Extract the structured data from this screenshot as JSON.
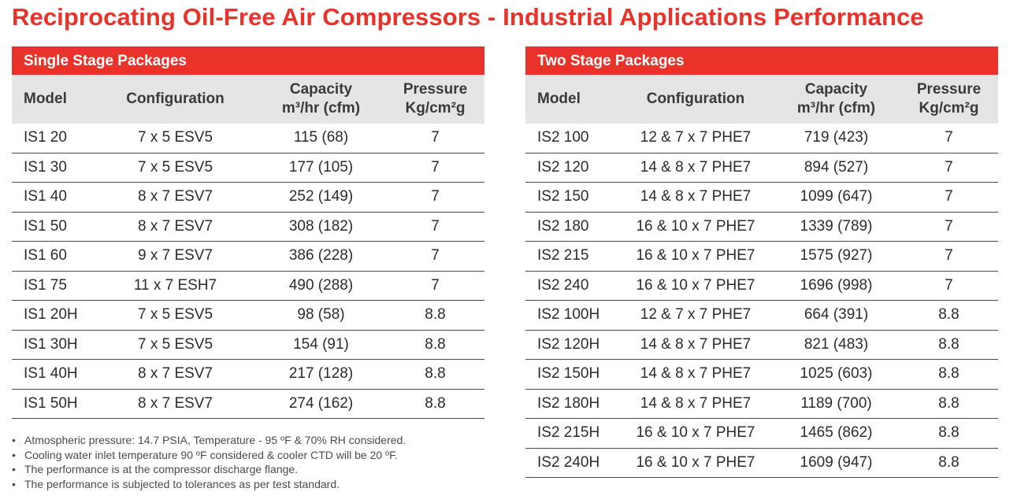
{
  "title": "Reciprocating Oil-Free Air Compressors - Industrial Applications Performance",
  "headers": {
    "model": "Model",
    "configuration": "Configuration",
    "capacity_line1": "Capacity",
    "capacity_line2": "m³/hr (cfm)",
    "pressure_line1": "Pressure",
    "pressure_line2": "Kg/cm²g"
  },
  "single_stage": {
    "title": "Single Stage Packages",
    "rows": [
      {
        "model": "IS1 20",
        "config": "7 x 5 ESV5",
        "capacity": "115 (68)",
        "pressure": "7"
      },
      {
        "model": "IS1 30",
        "config": "7 x 5 ESV5",
        "capacity": "177 (105)",
        "pressure": "7"
      },
      {
        "model": "IS1 40",
        "config": "8 x 7 ESV7",
        "capacity": "252 (149)",
        "pressure": "7"
      },
      {
        "model": "IS1 50",
        "config": "8 x 7 ESV7",
        "capacity": "308 (182)",
        "pressure": "7"
      },
      {
        "model": "IS1 60",
        "config": "9 x 7 ESV7",
        "capacity": "386 (228)",
        "pressure": "7"
      },
      {
        "model": "IS1 75",
        "config": "11 x 7 ESH7",
        "capacity": "490 (288)",
        "pressure": "7"
      },
      {
        "model": "IS1 20H",
        "config": "7 x 5 ESV5",
        "capacity": "98 (58)",
        "pressure": "8.8"
      },
      {
        "model": "IS1 30H",
        "config": "7 x 5 ESV5",
        "capacity": "154 (91)",
        "pressure": "8.8"
      },
      {
        "model": "IS1 40H",
        "config": "8 x 7 ESV7",
        "capacity": "217 (128)",
        "pressure": "8.8"
      },
      {
        "model": "IS1 50H",
        "config": "8 x 7 ESV7",
        "capacity": "274 (162)",
        "pressure": "8.8"
      }
    ]
  },
  "two_stage": {
    "title": "Two Stage Packages",
    "rows": [
      {
        "model": "IS2 100",
        "config": "12 & 7 x 7 PHE7",
        "capacity": "719 (423)",
        "pressure": "7"
      },
      {
        "model": "IS2 120",
        "config": "14 & 8 x 7 PHE7",
        "capacity": "894 (527)",
        "pressure": "7"
      },
      {
        "model": "IS2 150",
        "config": "14 & 8 x 7 PHE7",
        "capacity": "1099 (647)",
        "pressure": "7"
      },
      {
        "model": "IS2 180",
        "config": "16 & 10 x 7 PHE7",
        "capacity": "1339 (789)",
        "pressure": "7"
      },
      {
        "model": "IS2 215",
        "config": "16 & 10 x 7 PHE7",
        "capacity": "1575 (927)",
        "pressure": "7"
      },
      {
        "model": "IS2 240",
        "config": "16 & 10 x 7 PHE7",
        "capacity": "1696 (998)",
        "pressure": "7"
      },
      {
        "model": "IS2 100H",
        "config": "12 & 7 x 7 PHE7",
        "capacity": "664 (391)",
        "pressure": "8.8"
      },
      {
        "model": "IS2 120H",
        "config": "14 & 8 x 7 PHE7",
        "capacity": "821 (483)",
        "pressure": "8.8"
      },
      {
        "model": "IS2 150H",
        "config": "14 & 8 x 7 PHE7",
        "capacity": "1025 (603)",
        "pressure": "8.8"
      },
      {
        "model": "IS2 180H",
        "config": "14 & 8 x 7 PHE7",
        "capacity": "1189 (700)",
        "pressure": "8.8"
      },
      {
        "model": "IS2 215H",
        "config": "16 & 10 x 7 PHE7",
        "capacity": "1465 (862)",
        "pressure": "8.8"
      },
      {
        "model": "IS2 240H",
        "config": "16 & 10 x 7 PHE7",
        "capacity": "1609 (947)",
        "pressure": "8.8"
      }
    ]
  },
  "notes": [
    "Atmospheric pressure: 14.7 PSIA, Temperature - 95 ºF & 70% RH considered.",
    "Cooling water inlet temperature 90 ºF considered & cooler CTD will be 20 ºF.",
    "The performance is at the compressor discharge flange.",
    "The performance is subjected to tolerances as per test standard."
  ],
  "colors": {
    "brand_red": "#e8322a",
    "header_gray": "#e5e5e5",
    "rule": "#4a4a4a"
  }
}
